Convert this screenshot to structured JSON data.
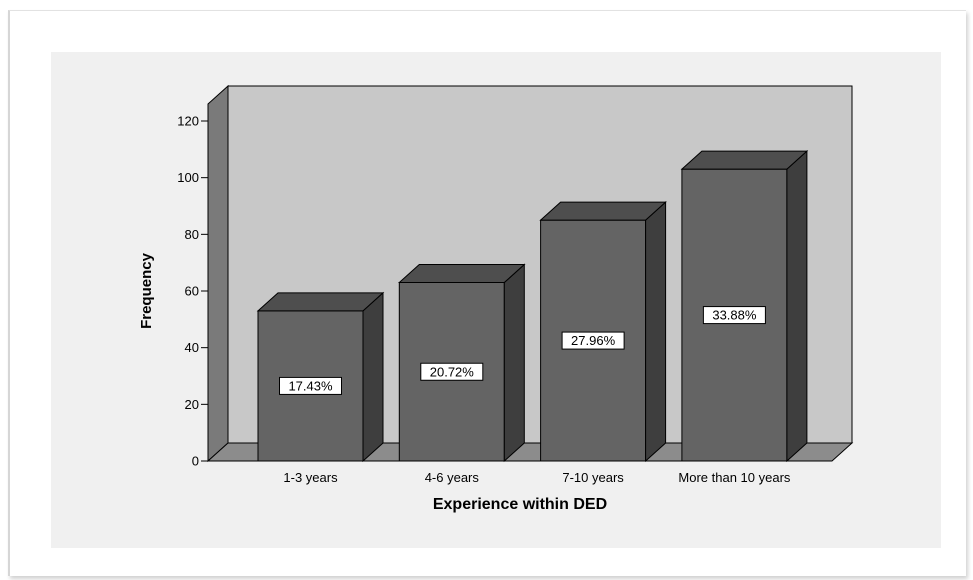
{
  "chart_data": {
    "type": "bar",
    "style": "3d",
    "title": "",
    "xlabel": "Experience within DED",
    "ylabel": "Frequency",
    "categories": [
      "1-3 years",
      "4-6 years",
      "7-10 years",
      "More than 10 years"
    ],
    "values": [
      53,
      63,
      85,
      103
    ],
    "data_labels": [
      "17.43%",
      "20.72%",
      "27.96%",
      "33.88%"
    ],
    "ylim": [
      0,
      120
    ],
    "yticks": [
      "0",
      "20",
      "40",
      "60",
      "80",
      "100",
      "120"
    ],
    "grid": false,
    "legend": "none",
    "colors": {
      "bar_front": "#646464",
      "bar_side": "#3e3e3e",
      "bar_top": "#4e4e4e",
      "back_wall": "#c8c8c8",
      "side_wall": "#7a7a7a",
      "floor": "#8c8c8c",
      "panel": "#f0f0f0"
    }
  }
}
